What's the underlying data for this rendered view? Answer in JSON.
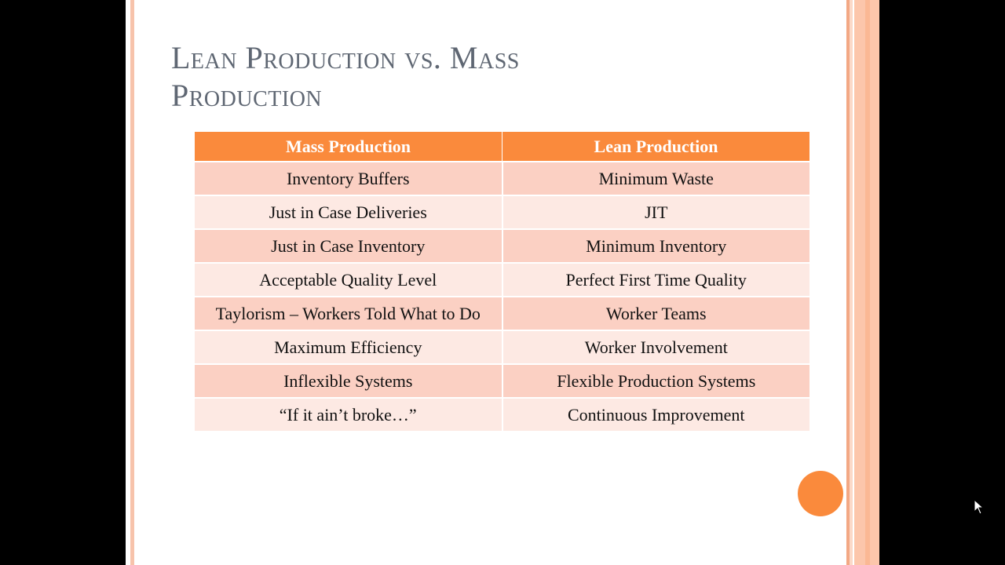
{
  "slide": {
    "title_line1": "Lean Production vs. Mass",
    "title_line2": "Production"
  },
  "table": {
    "headers": [
      "Mass Production",
      "Lean Production"
    ],
    "rows": [
      [
        "Inventory Buffers",
        "Minimum Waste"
      ],
      [
        "Just in Case Deliveries",
        "JIT"
      ],
      [
        "Just in Case Inventory",
        "Minimum Inventory"
      ],
      [
        "Acceptable Quality Level",
        "Perfect First Time Quality"
      ],
      [
        "Taylorism – Workers Told What to Do",
        "Worker Teams"
      ],
      [
        "Maximum Efficiency",
        "Worker Involvement"
      ],
      [
        "Inflexible Systems",
        "Flexible Production Systems"
      ],
      [
        "“If it ain’t broke…”",
        "Continuous Improvement"
      ]
    ]
  },
  "colors": {
    "accent": "#fa8a3c",
    "row_odd": "#fbd0c3",
    "row_even": "#fde9e3",
    "title": "#5f6773"
  },
  "icons": {
    "decor": "orange-circle-icon",
    "pointer": "mouse-cursor-icon"
  }
}
